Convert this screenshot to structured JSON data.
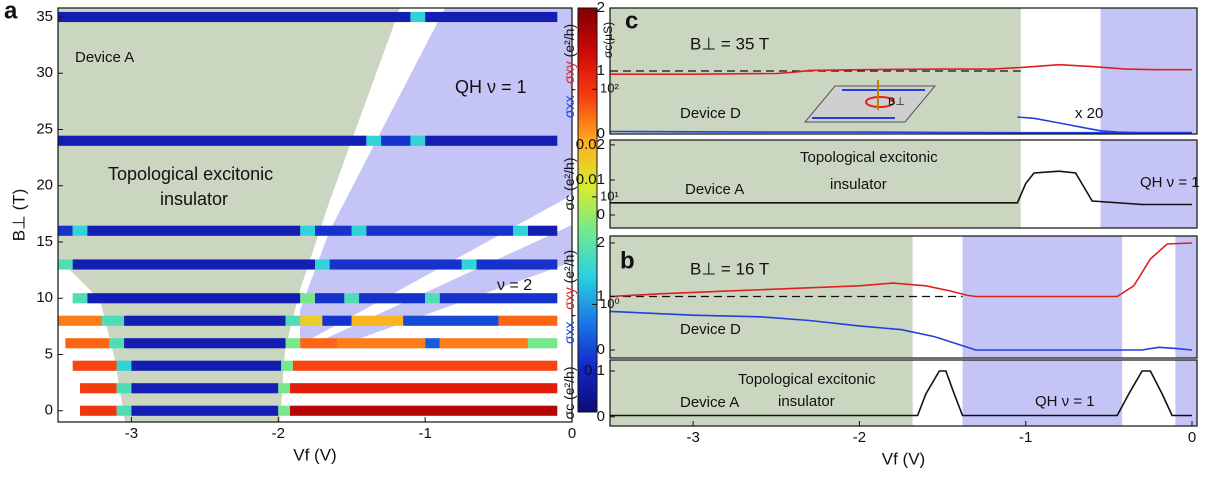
{
  "chart_data": [
    {
      "type": "heatmap",
      "panel": "a",
      "xlabel": "Vf (V)",
      "ylabel": "B⊥ (T)",
      "colorbar_label": "σc(µS)",
      "xlim": [
        -3.5,
        0
      ],
      "ylim": [
        -1,
        35.8
      ],
      "xticks": [
        -3,
        -2,
        -1,
        0
      ],
      "yticks": [
        0,
        5,
        10,
        15,
        20,
        25,
        30,
        35
      ],
      "clim": [
        0.1,
        570
      ],
      "log_color": true,
      "cticks": [
        {
          "value": 1,
          "label": "10⁰"
        },
        {
          "value": 10,
          "label": "10¹"
        },
        {
          "value": 100,
          "label": "10²"
        }
      ],
      "colormap": [
        "#0c0c78",
        "#1426c8",
        "#1a78e6",
        "#28d0e0",
        "#70e890",
        "#d8ec30",
        "#ffb020",
        "#f84010",
        "#d00808",
        "#800000"
      ],
      "annotations": [
        "Device A",
        "QH  ν = 1",
        "Topological excitonic",
        "insulator",
        "ν = 2"
      ],
      "rows": [
        {
          "y": 35,
          "segments": [
            [
              -3.5,
              -1.1,
              0.2
            ],
            [
              -1.1,
              -1.0,
              2
            ],
            [
              -1.0,
              -0.1,
              0.2
            ]
          ]
        },
        {
          "y": 24,
          "segments": [
            [
              -3.5,
              -1.4,
              0.2
            ],
            [
              -1.4,
              -1.3,
              2
            ],
            [
              -1.3,
              -1.1,
              0.3
            ],
            [
              -1.1,
              -1.0,
              2
            ],
            [
              -1.0,
              -0.1,
              0.2
            ]
          ]
        },
        {
          "y": 16,
          "segments": [
            [
              -3.5,
              -3.4,
              0.3
            ],
            [
              -3.4,
              -3.3,
              2
            ],
            [
              -3.3,
              -1.85,
              0.2
            ],
            [
              -1.85,
              -1.75,
              2
            ],
            [
              -1.75,
              -1.5,
              0.3
            ],
            [
              -1.5,
              -1.4,
              2
            ],
            [
              -1.4,
              -0.4,
              0.3
            ],
            [
              -0.4,
              -0.3,
              2
            ],
            [
              -0.3,
              -0.1,
              0.2
            ]
          ]
        },
        {
          "y": 13,
          "segments": [
            [
              -3.5,
              -3.4,
              3
            ],
            [
              -3.4,
              -1.75,
              0.2
            ],
            [
              -1.75,
              -1.65,
              2
            ],
            [
              -1.65,
              -0.75,
              0.3
            ],
            [
              -0.75,
              -0.65,
              2
            ],
            [
              -0.65,
              -0.1,
              0.3
            ]
          ]
        },
        {
          "y": 10,
          "segments": [
            [
              -3.4,
              -3.3,
              3
            ],
            [
              -3.3,
              -1.85,
              0.2
            ],
            [
              -1.85,
              -1.75,
              5
            ],
            [
              -1.75,
              -1.55,
              0.3
            ],
            [
              -1.55,
              -1.45,
              3
            ],
            [
              -1.45,
              -1.0,
              0.3
            ],
            [
              -1.0,
              -0.9,
              3
            ],
            [
              -0.9,
              -0.1,
              0.3
            ]
          ]
        },
        {
          "y": 8,
          "segments": [
            [
              -3.5,
              -3.2,
              50
            ],
            [
              -3.2,
              -3.05,
              3
            ],
            [
              -3.05,
              -1.95,
              0.2
            ],
            [
              -1.95,
              -1.85,
              3
            ],
            [
              -1.85,
              -1.7,
              20
            ],
            [
              -1.7,
              -1.5,
              0.3
            ],
            [
              -1.5,
              -1.15,
              30
            ],
            [
              -1.15,
              -0.5,
              0.4
            ],
            [
              -0.5,
              -0.1,
              60
            ]
          ]
        },
        {
          "y": 6,
          "segments": [
            [
              -3.45,
              -3.15,
              60
            ],
            [
              -3.15,
              -3.05,
              3
            ],
            [
              -3.05,
              -1.95,
              0.2
            ],
            [
              -1.95,
              -1.85,
              5
            ],
            [
              -1.85,
              -1.6,
              60
            ],
            [
              -1.6,
              -1.0,
              50
            ],
            [
              -1.0,
              -0.9,
              0.5
            ],
            [
              -0.9,
              -0.3,
              50
            ],
            [
              -0.3,
              -0.1,
              5
            ]
          ]
        },
        {
          "y": 4,
          "segments": [
            [
              -3.4,
              -3.1,
              80
            ],
            [
              -3.1,
              -3.0,
              2
            ],
            [
              -3.0,
              -1.98,
              0.2
            ],
            [
              -1.98,
              -1.9,
              5
            ],
            [
              -1.9,
              -0.1,
              80
            ]
          ]
        },
        {
          "y": 2,
          "segments": [
            [
              -3.35,
              -3.1,
              90
            ],
            [
              -3.1,
              -3.0,
              3
            ],
            [
              -3.0,
              -2.0,
              0.2
            ],
            [
              -2.0,
              -1.92,
              5
            ],
            [
              -1.92,
              -0.1,
              150
            ]
          ]
        },
        {
          "y": 0,
          "segments": [
            [
              -3.35,
              -3.1,
              100
            ],
            [
              -3.1,
              -3.0,
              3
            ],
            [
              -3.0,
              -2.0,
              0.2
            ],
            [
              -2.0,
              -1.92,
              5
            ],
            [
              -1.92,
              -0.1,
              300
            ]
          ]
        }
      ]
    },
    {
      "type": "line",
      "panel": "c",
      "xlim": [
        -3.5,
        0.03
      ],
      "ylim": [
        0,
        2
      ],
      "yticks": [
        0,
        1,
        2
      ],
      "ylabel": [
        {
          "text": "σxx",
          "color": "#2040e0"
        },
        {
          "text": " , "
        },
        {
          "text": "σxy",
          "color": "#e02020"
        },
        {
          "text": " (e²/h)"
        }
      ],
      "annotations": [
        "B⊥ = 35 T",
        "Device D",
        "x 20"
      ],
      "regions": [
        {
          "x": [
            -3.5,
            -1.03
          ],
          "color": "#cbd6c0"
        },
        {
          "x": [
            -0.55,
            0.03
          ],
          "color": "#c4c4f6"
        }
      ],
      "reference_line": {
        "x": [
          -3.5,
          -1.03
        ],
        "y": 1
      },
      "series": [
        {
          "color": "#e02020",
          "x": [
            -3.5,
            -3.0,
            -2.5,
            -2.4,
            -2.3,
            -2.0,
            -1.5,
            -1.2,
            -1.0,
            -0.8,
            -0.6,
            -0.4,
            -0.2,
            0
          ],
          "values": [
            0.95,
            0.95,
            0.96,
            0.98,
            1.01,
            1.02,
            1.03,
            1.03,
            1.06,
            1.1,
            1.07,
            1.03,
            1.02,
            1.02
          ]
        },
        {
          "color": "#2040e0",
          "x": [
            -3.5,
            -3.0,
            -2.5,
            -2.0,
            -1.5,
            -1.0,
            -0.5,
            0
          ],
          "values": [
            0.04,
            0.035,
            0.03,
            0.03,
            0.025,
            0.02,
            0.02,
            0.02
          ]
        },
        {
          "color": "#2040e0",
          "x": [
            -1.05,
            -0.95,
            -0.85,
            -0.75,
            -0.65,
            -0.55,
            -0.45,
            -0.3,
            0
          ],
          "values": [
            0.27,
            0.25,
            0.2,
            0.15,
            0.1,
            0.05,
            0.03,
            0.02,
            0.02
          ]
        }
      ]
    },
    {
      "type": "line",
      "xlim": [
        -3.5,
        0.03
      ],
      "ylim": [
        -0.0037,
        0.0214
      ],
      "yticks": [
        0,
        0.01,
        0.02
      ],
      "ylabel": [
        {
          "text": "σc (e²/h)"
        }
      ],
      "annotations": [
        "Topological excitonic",
        "insulator",
        "Device A",
        "QH ν = 1"
      ],
      "regions": [
        {
          "x": [
            -3.5,
            -1.03
          ],
          "color": "#cbd6c0"
        },
        {
          "x": [
            -0.55,
            0.03
          ],
          "color": "#c4c4f6"
        }
      ],
      "series": [
        {
          "color": "#111111",
          "x": [
            -3.5,
            -2.5,
            -1.5,
            -1.05,
            -1.0,
            -0.95,
            -0.8,
            -0.7,
            -0.65,
            -0.6,
            -0.3,
            0
          ],
          "values": [
            0.0035,
            0.0035,
            0.0035,
            0.0035,
            0.009,
            0.012,
            0.0125,
            0.012,
            0.008,
            0.004,
            0.003,
            0.003
          ]
        }
      ]
    },
    {
      "type": "line",
      "panel": "b",
      "xlim": [
        -3.5,
        0.03
      ],
      "ylim": [
        -0.15,
        2.13
      ],
      "yticks": [
        0,
        1,
        2
      ],
      "ylabel": [
        {
          "text": "σxx",
          "color": "#2040e0"
        },
        {
          "text": " , "
        },
        {
          "text": "σxy",
          "color": "#e02020"
        },
        {
          "text": " (e²/h)"
        }
      ],
      "annotations": [
        "B⊥ = 16 T",
        "Device D"
      ],
      "regions": [
        {
          "x": [
            -3.5,
            -1.68
          ],
          "color": "#cbd6c0"
        },
        {
          "x": [
            -1.38,
            -0.42
          ],
          "color": "#c4c4f6"
        },
        {
          "x": [
            -0.1,
            0.03
          ],
          "color": "#c4c4f6"
        }
      ],
      "reference_line": {
        "x": [
          -3.5,
          -1.38
        ],
        "y": 1
      },
      "series": [
        {
          "color": "#e02020",
          "x": [
            -3.5,
            -3.2,
            -2.8,
            -2.4,
            -2.0,
            -1.8,
            -1.6,
            -1.45,
            -1.35,
            -1.3,
            -0.45,
            -0.35,
            -0.25,
            -0.15,
            0
          ],
          "values": [
            1.0,
            1.05,
            1.1,
            1.15,
            1.2,
            1.25,
            1.2,
            1.1,
            1.02,
            1.0,
            1.0,
            1.2,
            1.7,
            1.98,
            2.0
          ]
        },
        {
          "color": "#2040e0",
          "x": [
            -3.5,
            -3.0,
            -2.6,
            -2.3,
            -2.0,
            -1.75,
            -1.55,
            -1.4,
            -1.3,
            -0.3,
            -0.2,
            -0.1,
            0
          ],
          "values": [
            0.72,
            0.65,
            0.62,
            0.55,
            0.45,
            0.38,
            0.25,
            0.1,
            0.0,
            0.0,
            0.05,
            0.03,
            0.0
          ]
        }
      ]
    },
    {
      "type": "line",
      "xlim": [
        -3.5,
        0.03
      ],
      "ylim": [
        -0.02,
        0.124
      ],
      "yticks": [
        0,
        0.1
      ],
      "xticks": [
        -3,
        -2,
        -1,
        0
      ],
      "xlabel": "Vf (V)",
      "ylabel": [
        {
          "text": "σc (e²/h)"
        }
      ],
      "annotations": [
        "Device A",
        "Topological excitonic",
        "insulator",
        "QH ν = 1"
      ],
      "regions": [
        {
          "x": [
            -3.5,
            -1.68
          ],
          "color": "#cbd6c0"
        },
        {
          "x": [
            -1.38,
            -0.42
          ],
          "color": "#c4c4f6"
        },
        {
          "x": [
            -0.1,
            0.03
          ],
          "color": "#c4c4f6"
        }
      ],
      "series": [
        {
          "color": "#111111",
          "x": [
            -3.5,
            -2.5,
            -1.65,
            -1.6,
            -1.52,
            -1.48,
            -1.43,
            -1.38,
            -1.0,
            -0.45,
            -0.38,
            -0.3,
            -0.25,
            -0.18,
            -0.12,
            0
          ],
          "values": [
            0.003,
            0.003,
            0.003,
            0.05,
            0.1,
            0.1,
            0.05,
            0.003,
            0.003,
            0.003,
            0.05,
            0.1,
            0.1,
            0.05,
            0.003,
            0.003
          ]
        }
      ]
    }
  ]
}
